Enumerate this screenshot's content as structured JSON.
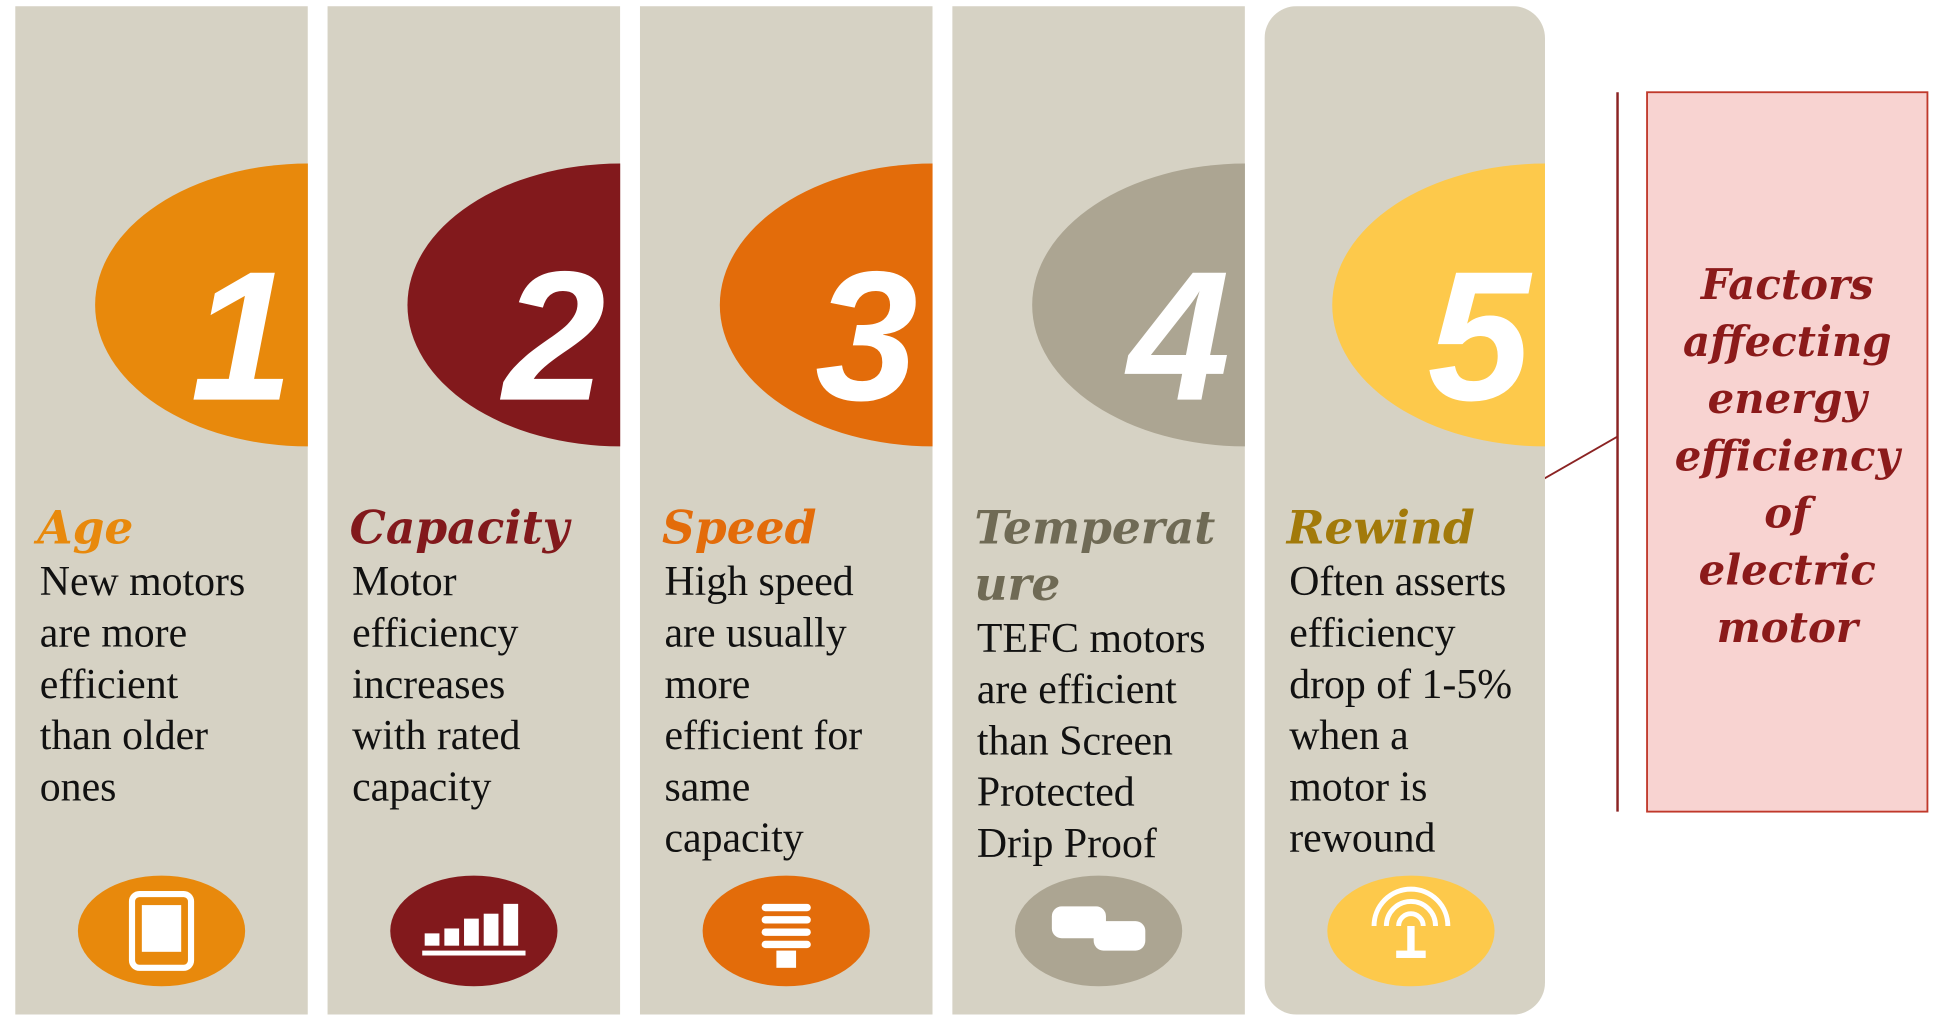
{
  "columns": [
    {
      "number": "1",
      "title_lines": [
        "Age"
      ],
      "text_lines": [
        "New motors",
        "are more",
        "efficient",
        "than older",
        "ones"
      ],
      "color": "#e8890c",
      "title_color": "#e8890c"
    },
    {
      "number": "2",
      "title_lines": [
        "Capacity"
      ],
      "text_lines": [
        "Motor",
        "efficiency",
        "increases",
        "with rated",
        "capacity"
      ],
      "color": "#82191c",
      "title_color": "#82191c"
    },
    {
      "number": "3",
      "title_lines": [
        "Speed"
      ],
      "text_lines": [
        "High speed",
        "are usually",
        "more",
        "efficient for",
        "same",
        "capacity"
      ],
      "color": "#e36c0a",
      "title_color": "#e36c0a"
    },
    {
      "number": "4",
      "title_lines": [
        "Temperat",
        "ure"
      ],
      "text_lines": [
        "TEFC motors",
        "are efficient",
        "than Screen",
        "Protected",
        "Drip Proof"
      ],
      "color": "#aca592",
      "title_color": "#6f6a55"
    },
    {
      "number": "5",
      "title_lines": [
        "Rewind"
      ],
      "text_lines": [
        "Often asserts",
        "efficiency",
        "drop of 1-5%",
        "when a",
        "motor is",
        "rewound"
      ],
      "color": "#fdc94b",
      "title_color": "#a27a0a"
    }
  ],
  "side_box": {
    "lines": [
      "Factors",
      "affecting",
      "energy",
      "efficiency",
      "of",
      "electric",
      "motor"
    ]
  }
}
